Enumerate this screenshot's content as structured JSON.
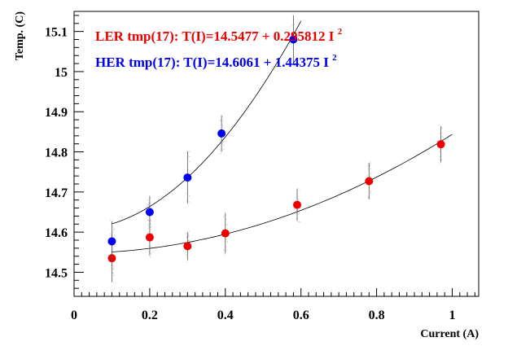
{
  "chart_data": {
    "type": "scatter",
    "title": "",
    "xlabel": "Current (A)",
    "ylabel": "Temp. (C)",
    "xlim": [
      0,
      1.07
    ],
    "ylim": [
      14.44,
      15.15
    ],
    "grid": false,
    "x_ticks": [
      0,
      0.2,
      0.4,
      0.6,
      0.8,
      1
    ],
    "x_tick_labels": [
      "0",
      "0.2",
      "0.4",
      "0.6",
      "0.8",
      "1"
    ],
    "y_ticks": [
      14.5,
      14.6,
      14.7,
      14.8,
      14.9,
      15,
      15.1
    ],
    "y_tick_labels": [
      "14.5",
      "14.6",
      "14.7",
      "14.8",
      "14.9",
      "15",
      "15.1"
    ],
    "series": [
      {
        "name": "LER tmp(17)",
        "color": "#ee0000",
        "x": [
          0.1,
          0.2,
          0.3,
          0.4,
          0.59,
          0.78,
          0.97
        ],
        "y": [
          14.535,
          14.587,
          14.565,
          14.597,
          14.668,
          14.727,
          14.819
        ],
        "y_err": [
          0.06,
          0.045,
          0.035,
          0.05,
          0.04,
          0.045,
          0.045
        ],
        "fit": {
          "a": 14.5477,
          "b": 0.295812,
          "x_range": [
            0.1,
            1.0
          ]
        }
      },
      {
        "name": "HER tmp(17)",
        "color": "#0000ee",
        "x": [
          0.1,
          0.2,
          0.3,
          0.39,
          0.58
        ],
        "y": [
          14.577,
          14.65,
          14.736,
          14.846,
          15.08
        ],
        "y_err": [
          0.05,
          0.04,
          0.065,
          0.045,
          0.06
        ],
        "fit": {
          "a": 14.6061,
          "b": 1.44375,
          "x_range": [
            0.1,
            0.6
          ]
        }
      }
    ],
    "annotations": [
      {
        "series": 0,
        "prefix": "LER tmp(17): T(I)=14.5477 + 0.295812 I",
        "superscript": "2",
        "color": "#ee0000"
      },
      {
        "series": 1,
        "prefix": "HER tmp(17): T(I)=14.6061 + 1.44375 I",
        "superscript": "2",
        "color": "#0000ee"
      }
    ]
  }
}
